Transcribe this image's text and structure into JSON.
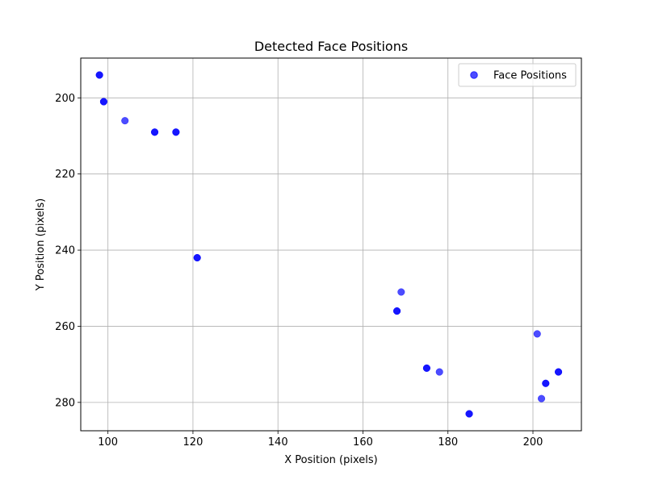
{
  "chart_data": {
    "type": "scatter",
    "title": "Detected Face Positions",
    "xlabel": "X Position (pixels)",
    "ylabel": "Y Position (pixels)",
    "xlim": [
      93.6,
      211.4
    ],
    "ylim": [
      287.45,
      189.55
    ],
    "y_inverted": true,
    "grid": true,
    "legend_position": "top-right",
    "x_ticks": [
      100,
      120,
      140,
      160,
      180,
      200
    ],
    "y_ticks": [
      200,
      220,
      240,
      260,
      280
    ],
    "series": [
      {
        "name": "Face Positions",
        "color": "#0000ff",
        "alpha": 0.7,
        "points": [
          {
            "x": 98,
            "y": 194
          },
          {
            "x": 98,
            "y": 194
          },
          {
            "x": 99,
            "y": 201
          },
          {
            "x": 99,
            "y": 201
          },
          {
            "x": 104,
            "y": 206
          },
          {
            "x": 111,
            "y": 209
          },
          {
            "x": 111,
            "y": 209
          },
          {
            "x": 116,
            "y": 209
          },
          {
            "x": 116,
            "y": 209
          },
          {
            "x": 121,
            "y": 242
          },
          {
            "x": 121,
            "y": 242
          },
          {
            "x": 169,
            "y": 251
          },
          {
            "x": 168,
            "y": 256
          },
          {
            "x": 168,
            "y": 256
          },
          {
            "x": 201,
            "y": 262
          },
          {
            "x": 175,
            "y": 271
          },
          {
            "x": 175,
            "y": 271
          },
          {
            "x": 178,
            "y": 272
          },
          {
            "x": 206,
            "y": 272
          },
          {
            "x": 206,
            "y": 272
          },
          {
            "x": 203,
            "y": 275
          },
          {
            "x": 203,
            "y": 275
          },
          {
            "x": 202,
            "y": 279
          },
          {
            "x": 185,
            "y": 283
          },
          {
            "x": 185,
            "y": 283
          }
        ]
      }
    ]
  }
}
